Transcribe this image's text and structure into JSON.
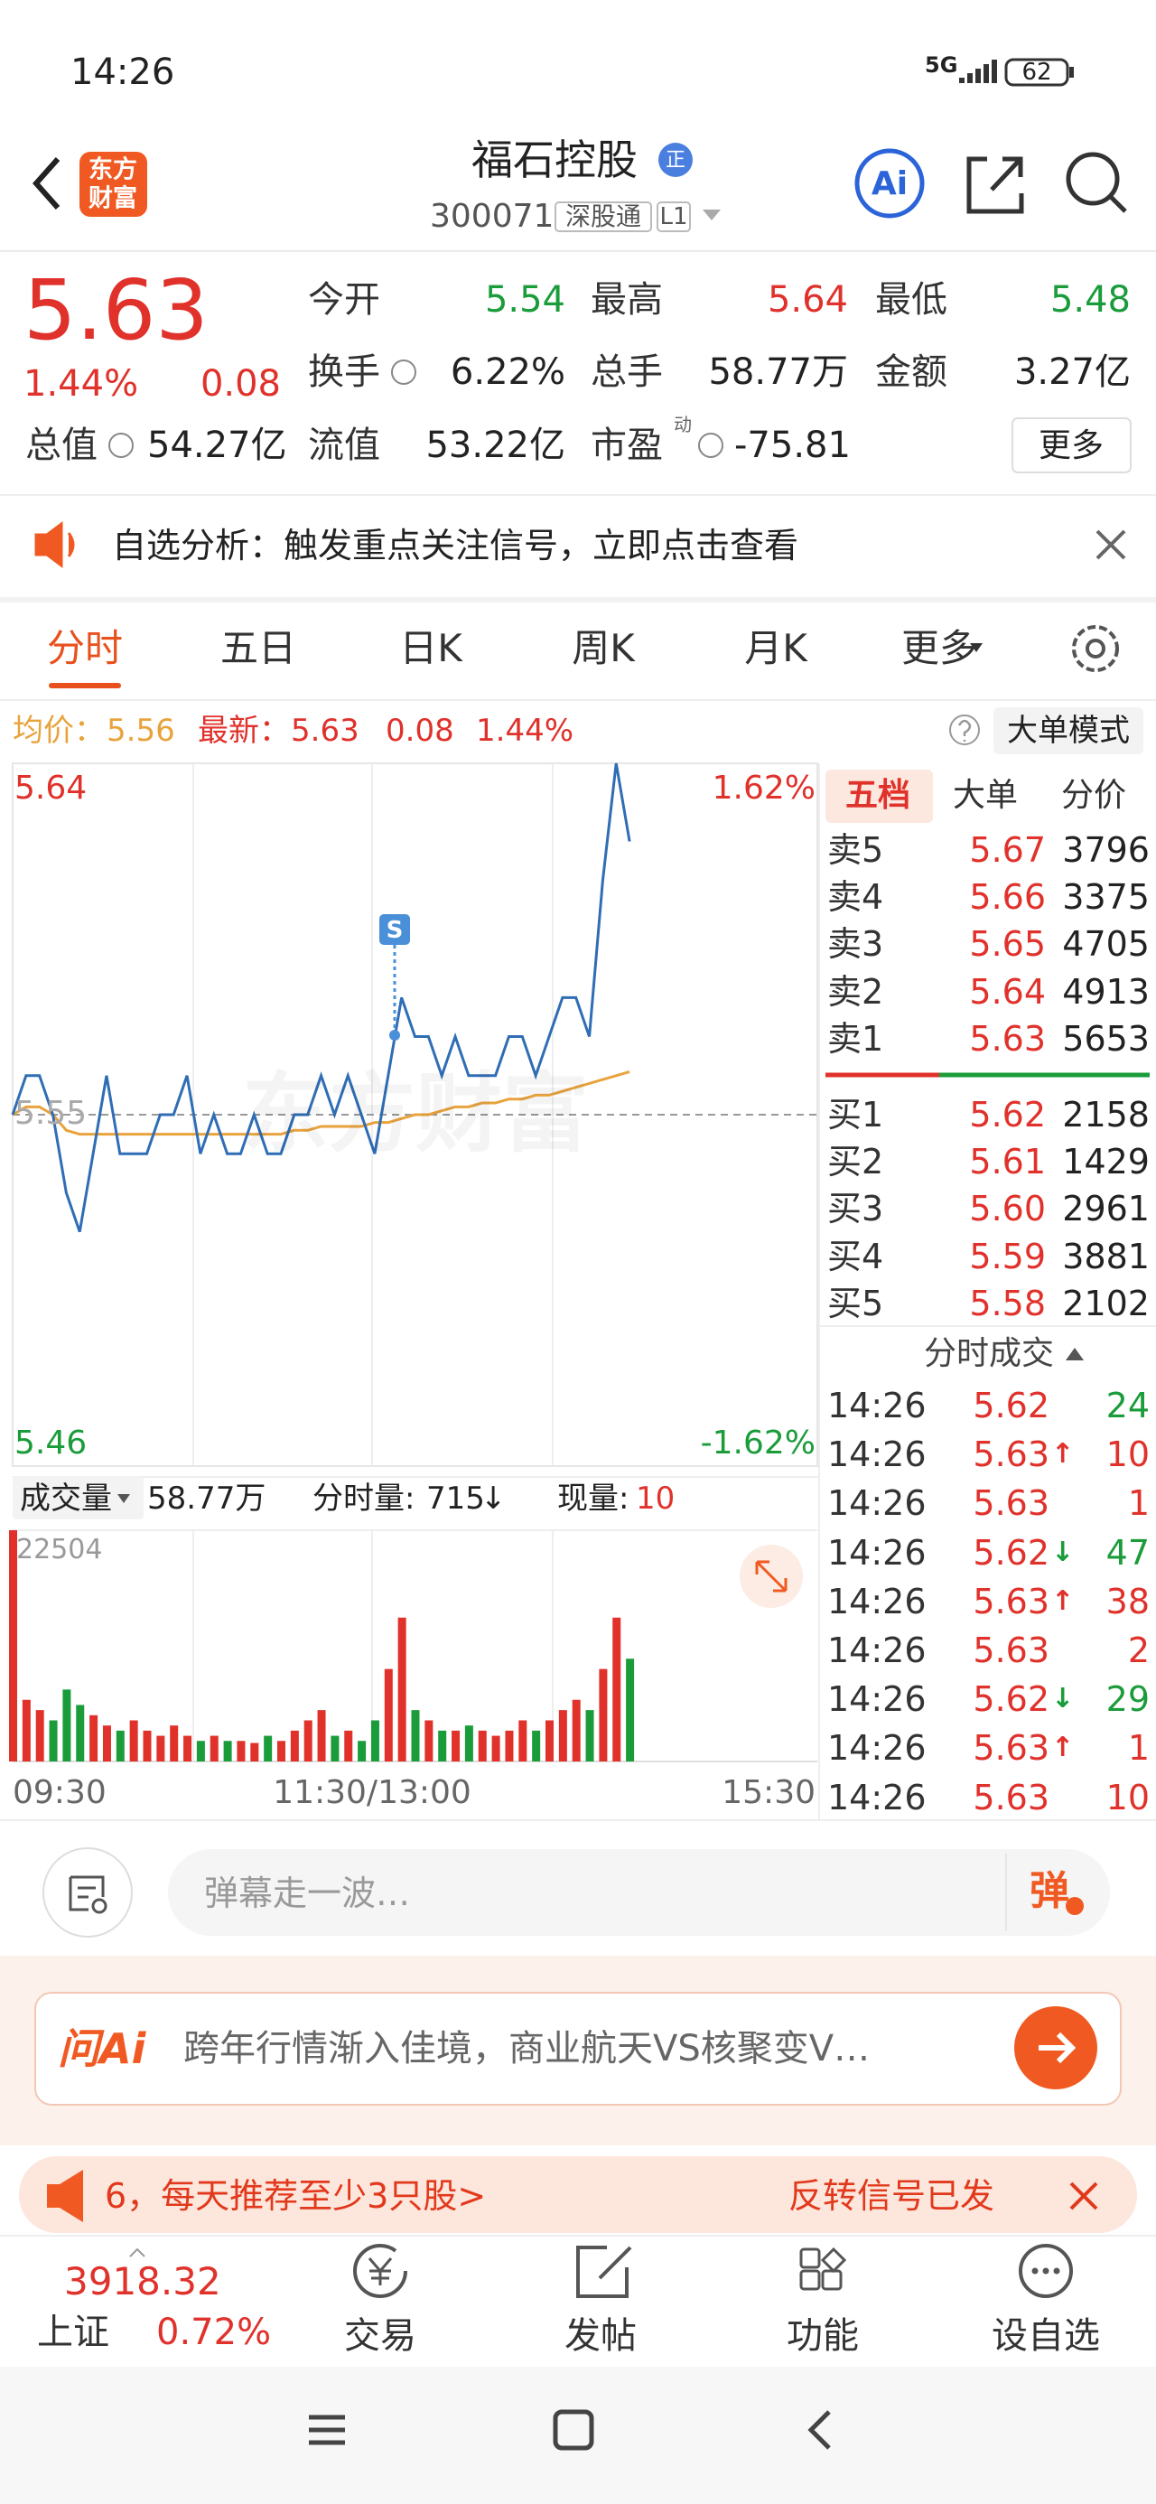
{
  "status_bar": {
    "time": "14:26",
    "network": "5G",
    "battery": "62"
  },
  "header": {
    "logo": [
      "东方",
      "财富"
    ],
    "title": "福石控股",
    "badge": "正",
    "code": "300071",
    "tag": "深股通",
    "level": "L1",
    "ai": "Ai"
  },
  "quote": {
    "price": "5.63",
    "change_pct": "1.44%",
    "change": "0.08",
    "stats": [
      {
        "label": "今开",
        "value": "5.54",
        "color": "#1a9c3a"
      },
      {
        "label": "最高",
        "value": "5.64",
        "color": "#e0312b"
      },
      {
        "label": "最低",
        "value": "5.48",
        "color": "#1a9c3a"
      },
      {
        "label": "换手",
        "value": "6.22%",
        "color": "#222222"
      },
      {
        "label": "总手",
        "value": "58.77万",
        "color": "#222222"
      },
      {
        "label": "金额",
        "value": "3.27亿",
        "color": "#222222"
      },
      {
        "label": "总值",
        "value": "54.27亿",
        "color": "#222222"
      },
      {
        "label": "流值",
        "value": "53.22亿",
        "color": "#222222"
      },
      {
        "label": "市盈",
        "value": "-75.81",
        "color": "#222222"
      }
    ],
    "pe_sup": "动",
    "more": "更多"
  },
  "banner": {
    "text": "自选分析：触发重点关注信号，立即点击查看"
  },
  "tabs": {
    "items": [
      "分时",
      "五日",
      "日K",
      "周K",
      "月K",
      "更多"
    ],
    "active": 0
  },
  "info": {
    "avg_label": "均价：",
    "avg": "5.56",
    "last_label": "最新：",
    "last": "5.63",
    "change": "0.08",
    "change_pct": "1.44%",
    "mode": "大单模式"
  },
  "chart": {
    "colors": {
      "price": "#2f6db5",
      "avg": "#e8a33d",
      "up": "#e0312b",
      "down": "#1a9c3a"
    },
    "ylim": [
      5.46,
      5.64
    ],
    "yticks": [
      5.46,
      5.55,
      5.64
    ],
    "pct_labels": [
      "-1.62%",
      "1.62%"
    ],
    "watermark": "东方财富",
    "signal": "S",
    "time_labels": [
      "09:30",
      "11:30/13:00",
      "15:30"
    ],
    "price": [
      5.55,
      5.56,
      5.56,
      5.55,
      5.53,
      5.52,
      5.54,
      5.56,
      5.54,
      5.54,
      5.54,
      5.55,
      5.55,
      5.56,
      5.54,
      5.55,
      5.54,
      5.54,
      5.55,
      5.54,
      5.54,
      5.55,
      5.55,
      5.56,
      5.55,
      5.56,
      5.55,
      5.54,
      5.56,
      5.58,
      5.57,
      5.57,
      5.56,
      5.57,
      5.56,
      5.56,
      5.56,
      5.57,
      5.57,
      5.56,
      5.57,
      5.58,
      5.58,
      5.57,
      5.61,
      5.64,
      5.62
    ],
    "avg": [
      5.55,
      5.552,
      5.552,
      5.55,
      5.546,
      5.545,
      5.545,
      5.545,
      5.545,
      5.545,
      5.545,
      5.545,
      5.545,
      5.545,
      5.545,
      5.545,
      5.545,
      5.545,
      5.545,
      5.545,
      5.545,
      5.546,
      5.546,
      5.547,
      5.547,
      5.547,
      5.547,
      5.548,
      5.548,
      5.549,
      5.55,
      5.55,
      5.551,
      5.552,
      5.552,
      5.553,
      5.553,
      5.554,
      5.554,
      5.555,
      5.555,
      5.556,
      5.557,
      5.558,
      5.559,
      5.56,
      5.561
    ],
    "volume": {
      "label": "成交量",
      "total": "58.77万",
      "per_label": "分时量:",
      "per": "715",
      "per_arrow": "↓",
      "cur_label": "现量:",
      "cur": "10",
      "max": 22504,
      "values": [
        22504,
        6000,
        5000,
        4000,
        7000,
        5500,
        4500,
        3500,
        3000,
        4000,
        3000,
        2500,
        3500,
        2500,
        2000,
        2500,
        2000,
        2000,
        1800,
        2500,
        2000,
        3000,
        4000,
        5000,
        2500,
        3000,
        2000,
        4000,
        9000,
        14000,
        5000,
        4000,
        3000,
        3000,
        3500,
        3000,
        2500,
        3000,
        4000,
        3000,
        4000,
        5000,
        6000,
        5000,
        9000,
        14000,
        10000
      ]
    }
  },
  "order_book": {
    "tabs": [
      "五档",
      "大单",
      "分价"
    ],
    "asks": [
      {
        "label": "卖5",
        "price": "5.67",
        "volume": "3796"
      },
      {
        "label": "卖4",
        "price": "5.66",
        "volume": "3375"
      },
      {
        "label": "卖3",
        "price": "5.65",
        "volume": "4705"
      },
      {
        "label": "卖2",
        "price": "5.64",
        "volume": "4913"
      },
      {
        "label": "卖1",
        "price": "5.63",
        "volume": "5653"
      }
    ],
    "bids": [
      {
        "label": "买1",
        "price": "5.62",
        "volume": "2158"
      },
      {
        "label": "买2",
        "price": "5.61",
        "volume": "1429"
      },
      {
        "label": "买3",
        "price": "5.60",
        "volume": "2961"
      },
      {
        "label": "买4",
        "price": "5.59",
        "volume": "3881"
      },
      {
        "label": "买5",
        "price": "5.58",
        "volume": "2102"
      }
    ]
  },
  "trades": {
    "title": "分时成交",
    "rows": [
      {
        "time": "14:26",
        "price": "5.62",
        "volume": "24",
        "color": "#1a9c3a"
      },
      {
        "time": "14:26",
        "price": "5.63",
        "arrow": "↑",
        "volume": "10",
        "color": "#e0312b"
      },
      {
        "time": "14:26",
        "price": "5.63",
        "volume": "1",
        "color": "#e0312b"
      },
      {
        "time": "14:26",
        "price": "5.62",
        "arrow": "↓",
        "volume": "47",
        "color": "#1a9c3a"
      },
      {
        "time": "14:26",
        "price": "5.63",
        "arrow": "↑",
        "volume": "38",
        "color": "#e0312b"
      },
      {
        "time": "14:26",
        "price": "5.63",
        "volume": "2",
        "color": "#e0312b"
      },
      {
        "time": "14:26",
        "price": "5.62",
        "arrow": "↓",
        "volume": "29",
        "color": "#1a9c3a"
      },
      {
        "time": "14:26",
        "price": "5.63",
        "arrow": "↑",
        "volume": "1",
        "color": "#e0312b"
      },
      {
        "time": "14:26",
        "price": "5.63",
        "volume": "10",
        "color": "#e0312b"
      }
    ]
  },
  "comment": {
    "placeholder": "弹幕走一波…",
    "button": "弹"
  },
  "ai_bar": {
    "logo": "问Ai",
    "text": "跨年行情渐入佳境，商业航天VS核聚变V…"
  },
  "ticker": {
    "left": "6，每天推荐至少3只股>",
    "right": "反转信号已发"
  },
  "bottom_nav": {
    "index": {
      "value": "3918.32",
      "name": "上证",
      "pct": "0.72%"
    },
    "items": [
      "交易",
      "发帖",
      "功能",
      "设自选"
    ]
  }
}
